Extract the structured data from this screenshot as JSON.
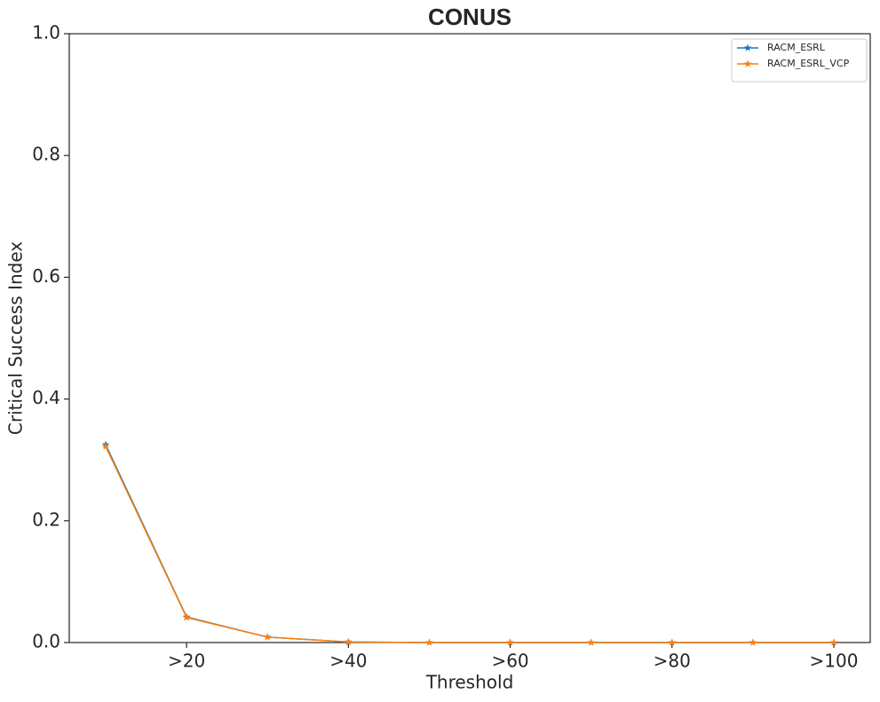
{
  "chart_data": {
    "type": "line",
    "title": "CONUS",
    "x_label": "Threshold",
    "y_label": "Critical Success Index",
    "x": [
      10,
      20,
      30,
      40,
      50,
      60,
      70,
      80,
      90,
      100
    ],
    "series": [
      {
        "name": "RACM_ESRL",
        "color": "#1f77b4",
        "marker": "star",
        "values": [
          0.325,
          0.042,
          0.009,
          0.001,
          0,
          0,
          0,
          0,
          0,
          0
        ]
      },
      {
        "name": "RACM_ESRL_VCP",
        "color": "#ff7f0e",
        "marker": "star",
        "values": [
          0.322,
          0.041,
          0.009,
          0.001,
          0,
          0,
          0,
          0,
          0,
          0
        ]
      }
    ],
    "xlim": [
      5.5,
      104.5
    ],
    "xticks": [
      {
        "value": 20,
        "label": ">20"
      },
      {
        "value": 40,
        "label": ">40"
      },
      {
        "value": 60,
        "label": ">60"
      },
      {
        "value": 80,
        "label": ">80"
      },
      {
        "value": 100,
        "label": ">100"
      }
    ],
    "ylim": [
      0,
      1
    ],
    "yticks": [
      {
        "value": 0,
        "label": "0.0"
      },
      0.2,
      0.4,
      0.6,
      0.8,
      {
        "value": 1,
        "label": "1.0"
      }
    ],
    "grid": false,
    "legend": "upper right"
  }
}
